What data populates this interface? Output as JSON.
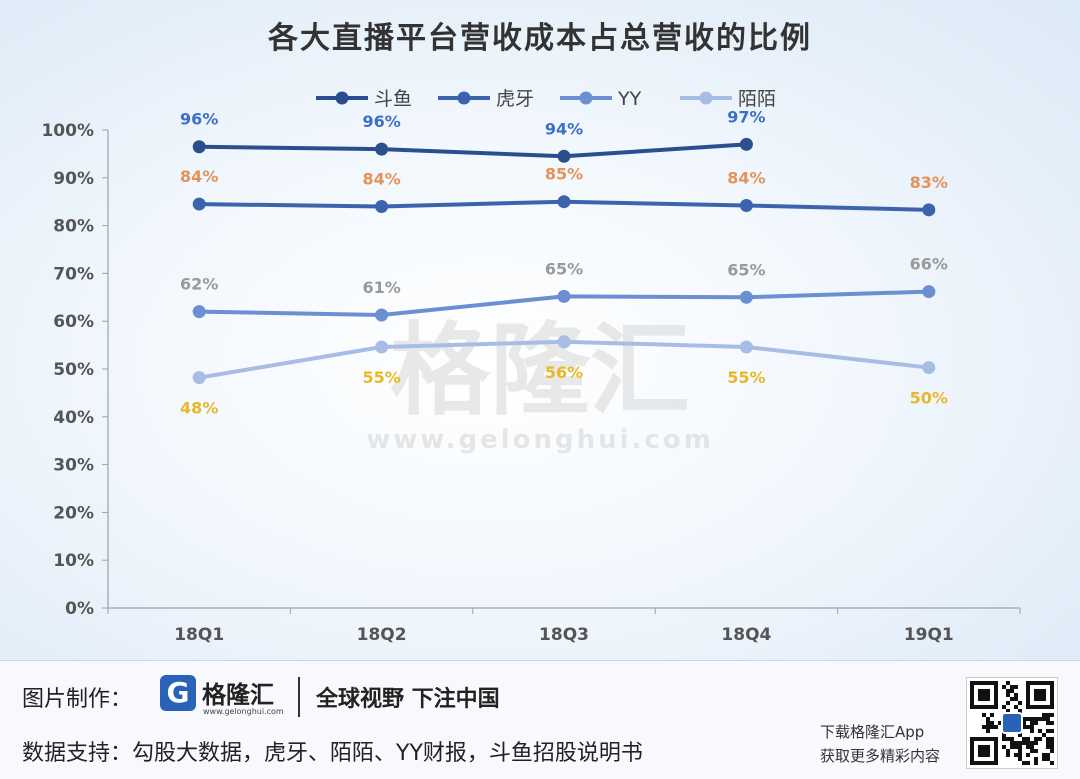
{
  "chart_data": {
    "type": "line",
    "title": "各大直播平台营收成本占总营收的比例",
    "categories": [
      "18Q1",
      "18Q2",
      "18Q3",
      "18Q4",
      "19Q1"
    ],
    "y_ticks": [
      "0%",
      "10%",
      "20%",
      "30%",
      "40%",
      "50%",
      "60%",
      "70%",
      "80%",
      "90%",
      "100%"
    ],
    "ylim": [
      0,
      100
    ],
    "legend_position": "top",
    "series": [
      {
        "name": "斗鱼",
        "color": "#2b4f8e",
        "label_color": "#3d6fc4",
        "label_pos": "above",
        "values": [
          96.5,
          96,
          94.5,
          97,
          null
        ],
        "labels": [
          "96%",
          "96%",
          "94%",
          "97%",
          null
        ]
      },
      {
        "name": "虎牙",
        "color": "#3c64ad",
        "label_color": "#e3935a",
        "label_pos": "above",
        "values": [
          84.5,
          84,
          85,
          84.2,
          83.3
        ],
        "labels": [
          "84%",
          "84%",
          "85%",
          "84%",
          "83%"
        ]
      },
      {
        "name": "YY",
        "color": "#6b8fd0",
        "label_color": "#999999",
        "label_pos": "above",
        "values": [
          62,
          61.3,
          65.2,
          65,
          66.2
        ],
        "labels": [
          "62%",
          "61%",
          "65%",
          "65%",
          "66%"
        ]
      },
      {
        "name": "陌陌",
        "color": "#a7bde6",
        "label_color": "#e8b829",
        "label_pos": "below",
        "values": [
          48.2,
          54.6,
          55.7,
          54.6,
          50.3
        ],
        "labels": [
          "48%",
          "55%",
          "56%",
          "55%",
          "50%"
        ]
      }
    ]
  },
  "watermark": {
    "brand": "格隆汇",
    "url": "www.gelonghui.com"
  },
  "footer": {
    "maker_label": "图片制作：",
    "logo_mark": "G",
    "logo_text": "格隆汇",
    "logo_url": "www.gelonghui.com",
    "slogan": "全球视野 下注中国",
    "source": "数据支持：勾股大数据，虎牙、陌陌、YY财报，斗鱼招股说明书",
    "app_line1": "下载格隆汇App",
    "app_line2": "获取更多精彩内容"
  }
}
